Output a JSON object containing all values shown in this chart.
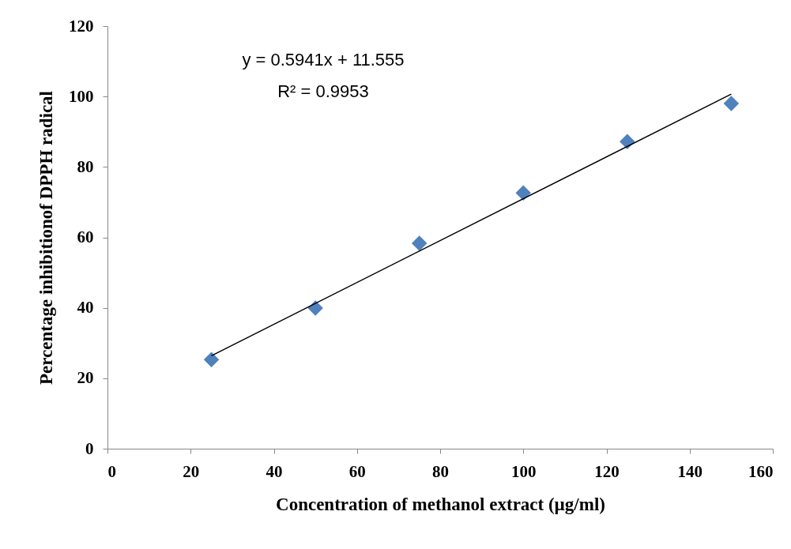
{
  "chart_data": {
    "type": "scatter",
    "xlabel": "Concentration of methanol extract (µg/ml)",
    "ylabel": "Percentage inhibitionof DPPH radical",
    "xlim": [
      0,
      160
    ],
    "xticks": [
      0,
      20,
      40,
      60,
      80,
      100,
      120,
      140,
      160
    ],
    "ylim": [
      0,
      120
    ],
    "yticks": [
      0,
      20,
      40,
      60,
      80,
      100,
      120
    ],
    "grid": false,
    "annotations": [
      "y = 0.5941x + 11.555",
      "R² = 0.9953"
    ],
    "series": [
      {
        "color": "#4f81bd",
        "marker": "diamond",
        "x": [
          25,
          50,
          75,
          100,
          125,
          150
        ],
        "values": [
          25.3,
          39.9,
          58.3,
          72.6,
          87.2,
          98.0
        ]
      },
      {
        "type": "line",
        "color": "#000000",
        "line_style": "solid",
        "marker": "none",
        "x": [
          25,
          150
        ],
        "values": [
          26.4,
          100.7
        ]
      }
    ]
  }
}
